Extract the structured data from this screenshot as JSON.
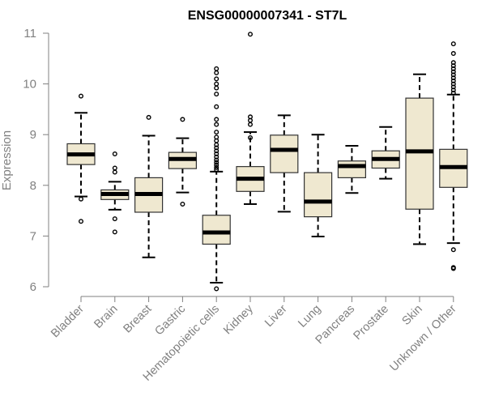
{
  "chart_data": {
    "type": "boxplot",
    "title": "ENSG00000007341 - ST7L",
    "xlabel": "",
    "ylabel": "Expression",
    "ylim": [
      6,
      11
    ],
    "yticks": [
      6,
      7,
      8,
      9,
      10,
      11
    ],
    "grid": false,
    "box_fill": "#efe8d0",
    "box_stroke": "#333333",
    "median_color": "#000000",
    "axis_color": "#808080",
    "categories": [
      "Bladder",
      "Brain",
      "Breast",
      "Gastric",
      "Hematopoietic cells",
      "Kidney",
      "Liver",
      "Lung",
      "Pancreas",
      "Prostate",
      "Skin",
      "Unknown / Other"
    ],
    "boxes": [
      {
        "name": "Bladder",
        "whisker_low": 7.78,
        "q1": 8.41,
        "median": 8.61,
        "q3": 8.82,
        "whisker_high": 9.43,
        "outliers": [
          9.76,
          7.73,
          7.29
        ]
      },
      {
        "name": "Brain",
        "whisker_low": 7.52,
        "q1": 7.72,
        "median": 7.83,
        "q3": 7.91,
        "whisker_high": 8.07,
        "outliers": [
          8.62,
          8.34,
          8.26,
          7.34,
          7.08
        ]
      },
      {
        "name": "Breast",
        "whisker_low": 6.58,
        "q1": 7.47,
        "median": 7.83,
        "q3": 8.15,
        "whisker_high": 8.98,
        "outliers": [
          9.34
        ]
      },
      {
        "name": "Gastric",
        "whisker_low": 7.86,
        "q1": 8.33,
        "median": 8.52,
        "q3": 8.65,
        "whisker_high": 8.93,
        "outliers": [
          9.3,
          7.63
        ]
      },
      {
        "name": "Hematopoietic cells",
        "whisker_low": 6.08,
        "q1": 6.84,
        "median": 7.07,
        "q3": 7.41,
        "whisker_high": 8.27,
        "outliers": [
          10.3,
          10.22,
          10.1,
          10.0,
          9.92,
          9.8,
          9.55,
          9.3,
          9.2,
          9.05,
          8.95,
          8.88,
          8.8,
          8.74,
          8.68,
          8.62,
          8.56,
          8.5,
          8.45,
          8.4,
          8.35,
          8.31,
          5.96
        ]
      },
      {
        "name": "Kidney",
        "whisker_low": 7.63,
        "q1": 7.88,
        "median": 8.13,
        "q3": 8.37,
        "whisker_high": 9.05,
        "outliers": [
          10.98,
          9.35,
          9.28,
          9.2,
          8.94
        ]
      },
      {
        "name": "Liver",
        "whisker_low": 7.48,
        "q1": 8.25,
        "median": 8.7,
        "q3": 8.99,
        "whisker_high": 9.38,
        "outliers": []
      },
      {
        "name": "Lung",
        "whisker_low": 6.99,
        "q1": 7.38,
        "median": 7.68,
        "q3": 8.25,
        "whisker_high": 9.0,
        "outliers": []
      },
      {
        "name": "Pancreas",
        "whisker_low": 7.85,
        "q1": 8.15,
        "median": 8.38,
        "q3": 8.48,
        "whisker_high": 8.78,
        "outliers": []
      },
      {
        "name": "Prostate",
        "whisker_low": 8.13,
        "q1": 8.34,
        "median": 8.52,
        "q3": 8.68,
        "whisker_high": 9.15,
        "outliers": []
      },
      {
        "name": "Skin",
        "whisker_low": 6.84,
        "q1": 7.53,
        "median": 8.67,
        "q3": 9.72,
        "whisker_high": 10.19,
        "outliers": []
      },
      {
        "name": "Unknown / Other",
        "whisker_low": 6.86,
        "q1": 7.96,
        "median": 8.36,
        "q3": 8.71,
        "whisker_high": 9.79,
        "outliers": [
          10.79,
          10.6,
          10.42,
          10.36,
          10.3,
          10.24,
          10.18,
          10.12,
          10.06,
          10.0,
          9.94,
          9.88,
          9.82,
          6.73,
          6.38,
          6.36
        ]
      }
    ]
  }
}
